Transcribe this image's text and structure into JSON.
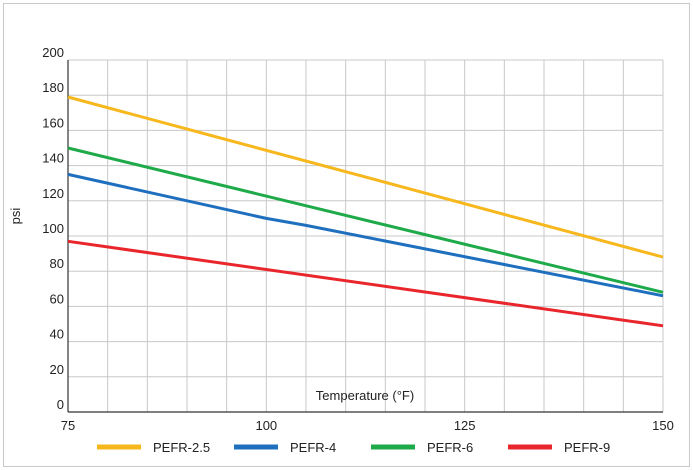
{
  "chart_data": {
    "type": "line",
    "title": "",
    "xlabel": "Temperature (°F)",
    "ylabel": "psi",
    "xlim": [
      75,
      150
    ],
    "ylim": [
      0,
      200
    ],
    "x_ticks": [
      75,
      100,
      125,
      150
    ],
    "y_ticks": [
      0,
      20,
      40,
      60,
      80,
      100,
      120,
      140,
      160,
      180,
      200
    ],
    "grid": true,
    "legend_position": "bottom",
    "series": [
      {
        "name": "PEFR-2.5",
        "color": "#f7b81e",
        "x": [
          75,
          150
        ],
        "y": [
          179,
          88
        ]
      },
      {
        "name": "PEFR-4",
        "color": "#1f6fbf",
        "x": [
          75,
          100,
          105,
          150
        ],
        "y": [
          135,
          110,
          106,
          66
        ]
      },
      {
        "name": "PEFR-6",
        "color": "#1faa4a",
        "x": [
          75,
          150
        ],
        "y": [
          150,
          68
        ]
      },
      {
        "name": "PEFR-9",
        "color": "#e8262c",
        "x": [
          75,
          150
        ],
        "y": [
          97,
          49
        ]
      }
    ]
  }
}
